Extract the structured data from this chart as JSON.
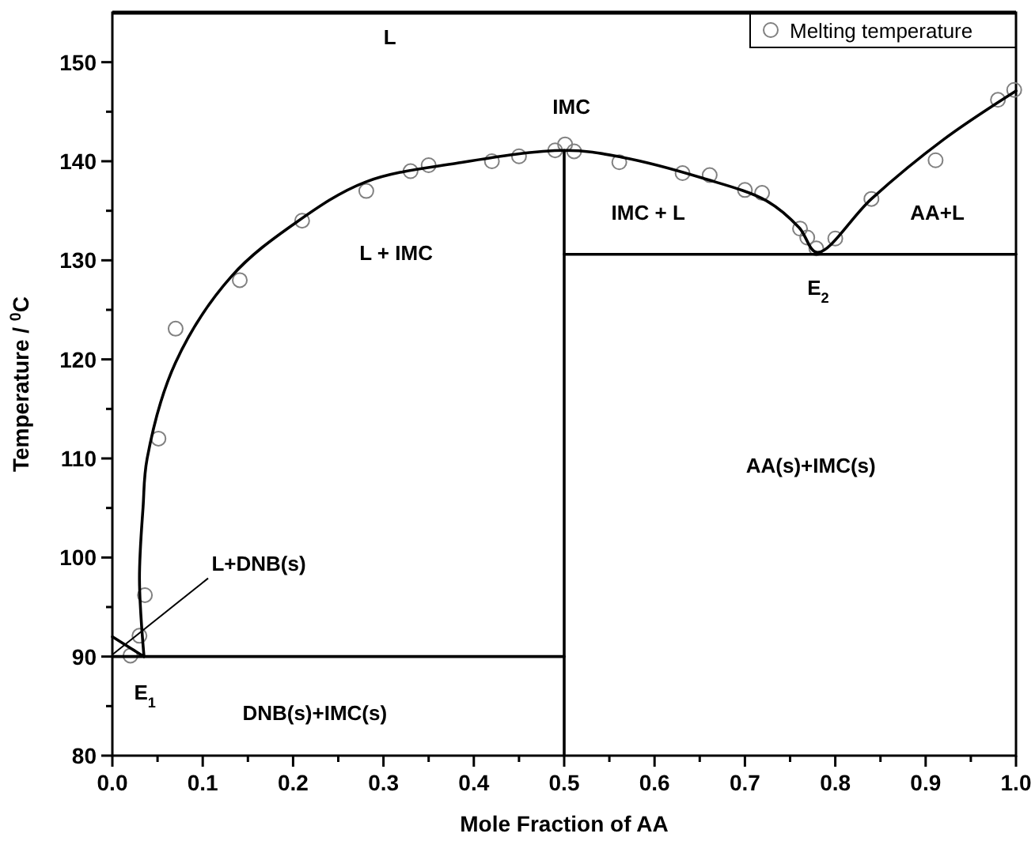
{
  "chart_data": {
    "type": "line",
    "xlabel": "Mole Fraction of AA",
    "ylabel": "Temperature / $^{0}$C",
    "xlim": [
      0,
      1
    ],
    "ylim": [
      80,
      155
    ],
    "xticks": [
      {
        "value": 0,
        "label": "0.0"
      },
      {
        "value": 0.05,
        "label": null
      },
      {
        "value": 0.1,
        "label": "0.1"
      },
      {
        "value": 0.15,
        "label": null
      },
      {
        "value": 0.2,
        "label": "0.2"
      },
      {
        "value": 0.25,
        "label": null
      },
      {
        "value": 0.3,
        "label": "0.3"
      },
      {
        "value": 0.35,
        "label": null
      },
      {
        "value": 0.4,
        "label": "0.4"
      },
      {
        "value": 0.45,
        "label": null
      },
      {
        "value": 0.5,
        "label": "0.5"
      },
      {
        "value": 0.55,
        "label": null
      },
      {
        "value": 0.6,
        "label": "0.6"
      },
      {
        "value": 0.65,
        "label": null
      },
      {
        "value": 0.7,
        "label": "0.7"
      },
      {
        "value": 0.75,
        "label": null
      },
      {
        "value": 0.8,
        "label": "0.8"
      },
      {
        "value": 0.85,
        "label": null
      },
      {
        "value": 0.9,
        "label": "0.9"
      },
      {
        "value": 0.95,
        "label": null
      },
      {
        "value": 1,
        "label": "1.0"
      }
    ],
    "yticks": [
      80,
      {
        "value": 85,
        "label": null
      },
      90,
      {
        "value": 95,
        "label": null
      },
      100,
      {
        "value": 105,
        "label": null
      },
      110,
      {
        "value": 115,
        "label": null
      },
      120,
      {
        "value": 125,
        "label": null
      },
      130,
      {
        "value": 135,
        "label": null
      },
      140,
      {
        "value": 145,
        "label": null
      },
      150
    ],
    "grid": false,
    "legend": "top right",
    "marker": "none",
    "line_style": "solid",
    "series": [
      {
        "type": "scatter",
        "name": "Melting temperature",
        "color": "#808080",
        "marker": "circle",
        "x": [
          0.02,
          0.03,
          0.036,
          0.051,
          0.07,
          0.141,
          0.21,
          0.281,
          0.33,
          0.35,
          0.42,
          0.45,
          0.49,
          0.501,
          0.511,
          0.561,
          0.631,
          0.661,
          0.7,
          0.719,
          0.761,
          0.769,
          0.779,
          0.8,
          0.84,
          0.911,
          0.98,
          0.998
        ],
        "values": [
          90.1,
          92.1,
          96.2,
          112,
          123.1,
          128,
          134,
          137,
          139,
          139.6,
          140,
          140.5,
          141.1,
          141.7,
          141,
          139.9,
          138.8,
          138.6,
          137.1,
          136.8,
          133.2,
          132.3,
          131.2,
          132.2,
          136.2,
          140.1,
          146.2,
          147.2
        ]
      },
      {
        "color": "#000000",
        "x": [
          0.035,
          0.03,
          0.034,
          0.0385,
          0.07,
          0.132,
          0.203,
          0.28,
          0.381,
          0.501,
          0.564,
          0.653,
          0.724,
          0.76,
          0.78,
          0.84,
          0.92,
          1.0
        ],
        "values": [
          90,
          97.8,
          105.1,
          110,
          119.7,
          128.4,
          133.8,
          137.9,
          139.8,
          141.1,
          140.4,
          138.3,
          136,
          133.3,
          130.8,
          136.2,
          142.2,
          147.1
        ]
      },
      {
        "color": "#000000",
        "x": [
          0,
          0.035
        ],
        "values": [
          92,
          90
        ]
      },
      {
        "color": "#000000",
        "x": [
          0,
          0.5
        ],
        "values": [
          90,
          90
        ]
      },
      {
        "color": "#000000",
        "x": [
          0.5,
          1
        ],
        "values": [
          130.6,
          130.6
        ]
      },
      {
        "color": "#000000",
        "x": [
          0.5,
          0.5
        ],
        "values": [
          80,
          141.1
        ]
      }
    ],
    "annotations": [
      "L",
      "IMC",
      "L + IMC",
      "IMC + L",
      "AA+L",
      "E$_{2}$",
      "AA(s)+IMC(s)",
      {
        "text": "L+DNB(s)",
        "x": 0.0,
        "y": 90.2
      },
      "E$_{1}$",
      "DNB(s)+IMC(s)"
    ]
  }
}
